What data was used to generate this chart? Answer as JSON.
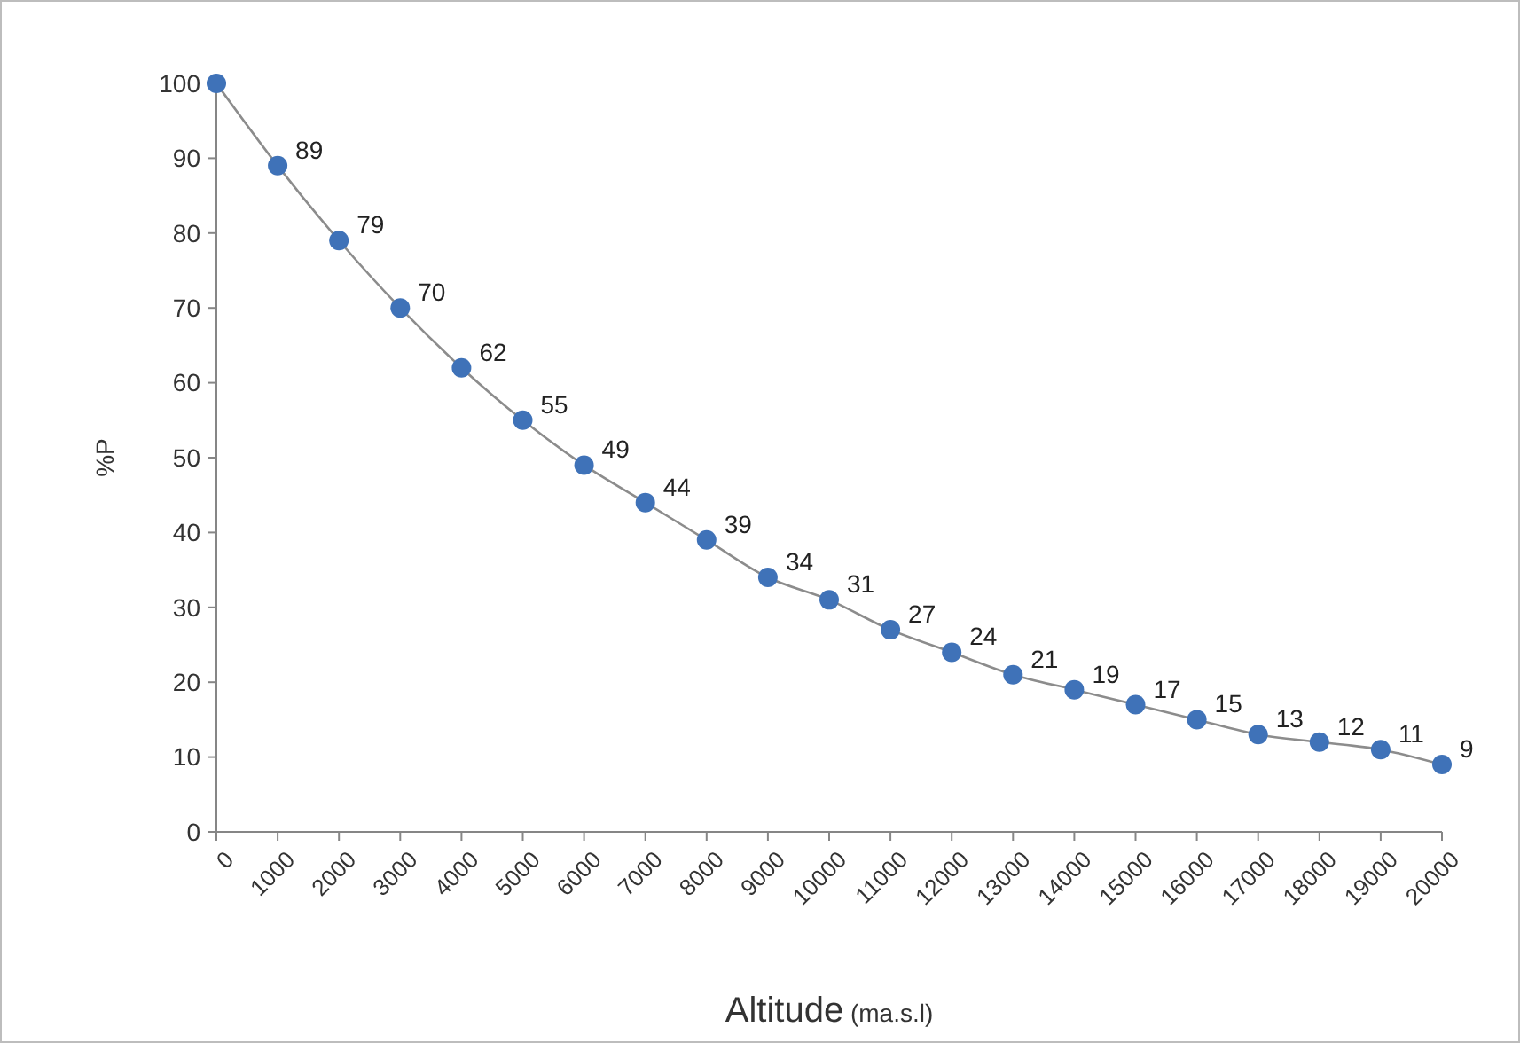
{
  "chart_data": {
    "type": "line",
    "ylabel": "%P",
    "xlabel": "Altitude (ma.s.l)",
    "x": [
      0,
      1000,
      2000,
      3000,
      4000,
      5000,
      6000,
      7000,
      8000,
      9000,
      10000,
      11000,
      12000,
      13000,
      14000,
      15000,
      16000,
      17000,
      18000,
      19000,
      20000
    ],
    "series": [
      {
        "color": "#3f72b8",
        "values": [
          100,
          89,
          79,
          70,
          62,
          55,
          49,
          44,
          39,
          34,
          31,
          27,
          24,
          21,
          19,
          17,
          15,
          13,
          12,
          11,
          9
        ],
        "value_labels": [
          null,
          "89",
          "79",
          "70",
          "62",
          "55",
          "49",
          "44",
          "39",
          "34",
          "31",
          "27",
          "24",
          "21",
          "19",
          "17",
          "15",
          "13",
          "12",
          "11",
          "9"
        ]
      }
    ],
    "xlim": [
      0,
      20000
    ],
    "xticks": [
      0,
      1000,
      2000,
      3000,
      4000,
      5000,
      6000,
      7000,
      8000,
      9000,
      10000,
      11000,
      12000,
      13000,
      14000,
      15000,
      16000,
      17000,
      18000,
      19000,
      20000
    ],
    "ylim": [
      0,
      100
    ],
    "yticks": [
      0,
      10,
      20,
      30,
      40,
      50,
      60,
      70,
      80,
      90,
      100
    ],
    "grid": false,
    "marker": "circle",
    "line_style": "solid"
  }
}
